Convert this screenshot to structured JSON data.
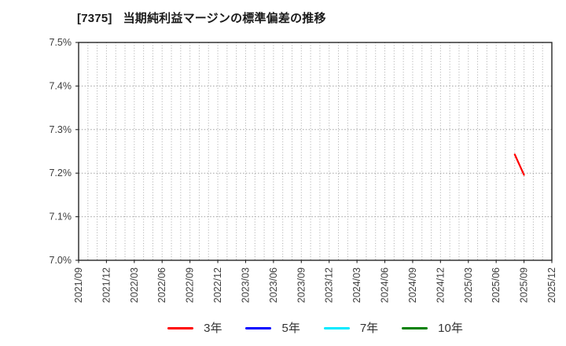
{
  "header": {
    "title_code": "[7375]",
    "title_text": "当期純利益マージンの標準偏差の推移"
  },
  "chart_data": {
    "type": "line",
    "title": "[7375] 当期純利益マージンの標準偏差の推移",
    "xlabel": "",
    "ylabel": "",
    "y_unit": "%",
    "ylim": [
      7.0,
      7.5
    ],
    "y_tick_step": 0.1,
    "y_tick_labels": [
      "7.0%",
      "7.1%",
      "7.2%",
      "7.3%",
      "7.4%",
      "7.5%"
    ],
    "x_range": [
      "2021/09",
      "2025/12"
    ],
    "x_tick_labels": [
      "2021/09",
      "2021/12",
      "2022/03",
      "2022/06",
      "2022/09",
      "2022/12",
      "2023/03",
      "2023/06",
      "2023/09",
      "2023/12",
      "2024/03",
      "2024/06",
      "2024/09",
      "2024/12",
      "2025/03",
      "2025/06",
      "2025/09",
      "2025/12"
    ],
    "grid": {
      "vertical": "monthly-dotted",
      "horizontal": "0.1%-dotted",
      "color": "#a6a6a6"
    },
    "axis_color": "#262626",
    "tick_label_color": "#3d3d3d",
    "legend": {
      "position": "bottom-center"
    },
    "series": [
      {
        "name": "3年",
        "color": "#ff0000",
        "points": [
          {
            "x": "2025/08",
            "y": 7.243
          },
          {
            "x": "2025/09",
            "y": 7.196
          }
        ]
      },
      {
        "name": "5年",
        "color": "#0000ff",
        "points": []
      },
      {
        "name": "7年",
        "color": "#00eaff",
        "points": []
      },
      {
        "name": "10年",
        "color": "#008000",
        "points": []
      }
    ]
  }
}
